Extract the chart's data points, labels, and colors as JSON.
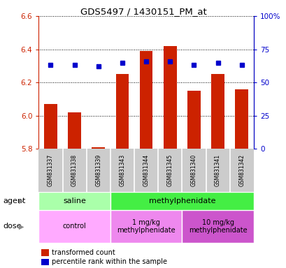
{
  "title": "GDS5497 / 1430151_PM_at",
  "samples": [
    "GSM831337",
    "GSM831338",
    "GSM831339",
    "GSM831343",
    "GSM831344",
    "GSM831345",
    "GSM831340",
    "GSM831341",
    "GSM831342"
  ],
  "bar_values": [
    6.07,
    6.02,
    5.81,
    6.25,
    6.39,
    6.42,
    6.15,
    6.25,
    6.16
  ],
  "percentile_values": [
    63,
    63,
    62,
    65,
    66,
    66,
    63,
    65,
    63
  ],
  "ylim_left": [
    5.8,
    6.6
  ],
  "ylim_right": [
    0,
    100
  ],
  "yticks_left": [
    5.8,
    6.0,
    6.2,
    6.4,
    6.6
  ],
  "yticks_right": [
    0,
    25,
    50,
    75,
    100
  ],
  "bar_color": "#cc2200",
  "dot_color": "#0000cc",
  "bar_bottom": 5.8,
  "agent_groups": [
    {
      "label": "saline",
      "start": 0,
      "end": 3,
      "color": "#aaffaa"
    },
    {
      "label": "methylphenidate",
      "start": 3,
      "end": 9,
      "color": "#44ee44"
    }
  ],
  "dose_groups": [
    {
      "label": "control",
      "start": 0,
      "end": 3,
      "color": "#ffaaff"
    },
    {
      "label": "1 mg/kg\nmethylphenidate",
      "start": 3,
      "end": 6,
      "color": "#ee88ee"
    },
    {
      "label": "10 mg/kg\nmethylphenidate",
      "start": 6,
      "end": 9,
      "color": "#cc55cc"
    }
  ],
  "legend_items": [
    {
      "color": "#cc2200",
      "label": "transformed count"
    },
    {
      "color": "#0000cc",
      "label": "percentile rank within the sample"
    }
  ],
  "bg_color": "#ffffff",
  "left_axis_color": "#cc2200",
  "right_axis_color": "#0000cc",
  "sample_bg_color": "#cccccc",
  "sample_divider_color": "#ffffff"
}
